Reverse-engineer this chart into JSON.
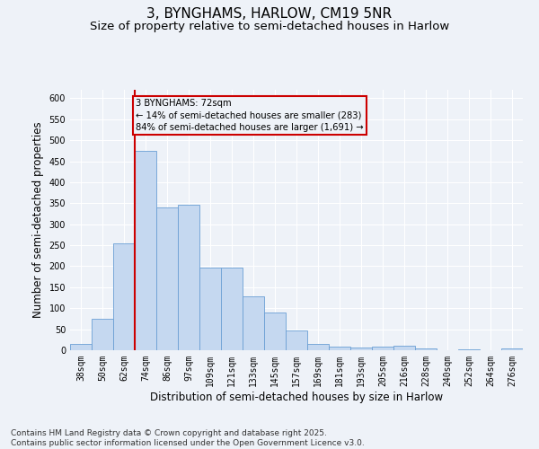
{
  "title": "3, BYNGHAMS, HARLOW, CM19 5NR",
  "subtitle": "Size of property relative to semi-detached houses in Harlow",
  "xlabel": "Distribution of semi-detached houses by size in Harlow",
  "ylabel": "Number of semi-detached properties",
  "categories": [
    "38sqm",
    "50sqm",
    "62sqm",
    "74sqm",
    "86sqm",
    "97sqm",
    "109sqm",
    "121sqm",
    "133sqm",
    "145sqm",
    "157sqm",
    "169sqm",
    "181sqm",
    "193sqm",
    "205sqm",
    "216sqm",
    "228sqm",
    "240sqm",
    "252sqm",
    "264sqm",
    "276sqm"
  ],
  "values": [
    15,
    75,
    255,
    475,
    340,
    347,
    197,
    197,
    128,
    90,
    47,
    15,
    9,
    7,
    9,
    10,
    5,
    1,
    2,
    1,
    4
  ],
  "bar_color": "#c5d8f0",
  "bar_edge_color": "#6b9fd4",
  "property_label": "3 BYNGHAMS: 72sqm",
  "pct_smaller": 14,
  "n_smaller": 283,
  "pct_larger": 84,
  "n_larger": 1691,
  "vline_bin": "74sqm",
  "annotation_box_color": "#cc0000",
  "ylim": [
    0,
    620
  ],
  "yticks": [
    0,
    50,
    100,
    150,
    200,
    250,
    300,
    350,
    400,
    450,
    500,
    550,
    600
  ],
  "footnote": "Contains HM Land Registry data © Crown copyright and database right 2025.\nContains public sector information licensed under the Open Government Licence v3.0.",
  "bg_color": "#eef2f8",
  "grid_color": "#ffffff",
  "title_fontsize": 11,
  "subtitle_fontsize": 9.5,
  "tick_fontsize": 7,
  "label_fontsize": 8.5,
  "footnote_fontsize": 6.5
}
